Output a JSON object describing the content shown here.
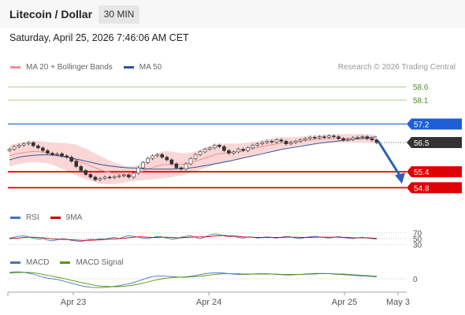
{
  "header": {
    "title": "Litecoin / Dollar",
    "timeframe_button": "30 MIN",
    "datetime": "Saturday, April 25, 2026 7:46:06 AM CET",
    "copyright": "Research © 2026 Trading Central"
  },
  "legends": {
    "price": [
      {
        "label": "MA 20 + Bollinger Bands",
        "color": "#f0908c"
      },
      {
        "label": "MA 50",
        "color": "#2f5597"
      }
    ],
    "rsi": [
      {
        "label": "RSI",
        "color": "#4472c4"
      },
      {
        "label": "9MA",
        "color": "#cc0000"
      }
    ],
    "macd": [
      {
        "label": "MACD",
        "color": "#4472c4"
      },
      {
        "label": "MACD Signal",
        "color": "#4e9a06"
      }
    ]
  },
  "chart_data": {
    "type": "candlestick",
    "ylim": [
      54.1,
      59.2
    ],
    "levels": [
      {
        "value": 58.6,
        "label": "58.6",
        "color": "#8fbc5a",
        "style": "thin"
      },
      {
        "value": 58.1,
        "label": "58.1",
        "color": "#8fbc5a",
        "style": "thin"
      },
      {
        "value": 57.2,
        "label": "57.2",
        "color": "#1f5fd6",
        "style": "resistance"
      },
      {
        "value": 56.5,
        "label": "56.5",
        "color": "#333333",
        "style": "current"
      },
      {
        "value": 55.4,
        "label": "55.4",
        "color": "#e00000",
        "style": "support"
      },
      {
        "value": 54.8,
        "label": "54.8",
        "color": "#e00000",
        "style": "support"
      }
    ],
    "x_ticks": [
      "Apr 23",
      "Apr 24",
      "Apr 25",
      "May 3"
    ],
    "close": [
      56.25,
      56.35,
      56.4,
      56.45,
      56.5,
      56.38,
      56.3,
      56.2,
      56.1,
      56.05,
      56.08,
      56.0,
      55.95,
      55.8,
      55.6,
      55.45,
      55.3,
      55.2,
      55.1,
      55.15,
      55.2,
      55.18,
      55.22,
      55.25,
      55.28,
      55.2,
      55.35,
      55.55,
      55.75,
      55.9,
      56.0,
      56.05,
      55.95,
      55.85,
      55.7,
      55.55,
      55.5,
      55.7,
      55.9,
      56.05,
      56.15,
      56.25,
      56.3,
      56.4,
      56.35,
      56.2,
      56.1,
      56.15,
      56.25,
      56.2,
      56.3,
      56.4,
      56.45,
      56.5,
      56.55,
      56.52,
      56.6,
      56.55,
      56.45,
      56.5,
      56.55,
      56.6,
      56.65,
      56.7,
      56.68,
      56.72,
      56.7,
      56.75,
      56.72,
      56.65,
      56.6,
      56.62,
      56.68,
      56.7,
      56.72,
      56.65,
      56.6,
      56.5
    ],
    "ma20": [
      56.0,
      56.05,
      56.1,
      56.12,
      56.15,
      56.16,
      56.16,
      56.14,
      56.12,
      56.08,
      56.04,
      56.0,
      55.96,
      55.9,
      55.84,
      55.76,
      55.7,
      55.62,
      55.55,
      55.48,
      55.42,
      55.38,
      55.34,
      55.32,
      55.31,
      55.31,
      55.33,
      55.37,
      55.43,
      55.5,
      55.56,
      55.62,
      55.66,
      55.68,
      55.68,
      55.68,
      55.68,
      55.7,
      55.74,
      55.8,
      55.86,
      55.92,
      55.98,
      56.04,
      56.08,
      56.1,
      56.12,
      56.14,
      56.17,
      56.2,
      56.24,
      56.28,
      56.31,
      56.35,
      56.39,
      56.42,
      56.45,
      56.48,
      56.5,
      56.52,
      56.54,
      56.56,
      56.58,
      56.6,
      56.62,
      56.63,
      56.64,
      56.65,
      56.66,
      56.66,
      56.66,
      56.66,
      56.66,
      56.66,
      56.66,
      56.65,
      56.64,
      56.62
    ],
    "bb_band_width": [
      0.4,
      0.4,
      0.4,
      0.4,
      0.4,
      0.4,
      0.4,
      0.4,
      0.4,
      0.42,
      0.45,
      0.48,
      0.52,
      0.55,
      0.58,
      0.58,
      0.58,
      0.56,
      0.54,
      0.52,
      0.48,
      0.44,
      0.4,
      0.36,
      0.32,
      0.28,
      0.28,
      0.3,
      0.34,
      0.4,
      0.45,
      0.48,
      0.5,
      0.5,
      0.48,
      0.45,
      0.42,
      0.4,
      0.38,
      0.38,
      0.38,
      0.38,
      0.38,
      0.38,
      0.38,
      0.36,
      0.34,
      0.32,
      0.3,
      0.28,
      0.26,
      0.25,
      0.24,
      0.24,
      0.24,
      0.24,
      0.24,
      0.22,
      0.2,
      0.18,
      0.17,
      0.16,
      0.16,
      0.16,
      0.16,
      0.16,
      0.16,
      0.16,
      0.16,
      0.16,
      0.16,
      0.16,
      0.16,
      0.16,
      0.16,
      0.16,
      0.16,
      0.16
    ],
    "ma50": [
      55.85,
      55.9,
      55.95,
      55.98,
      56.0,
      56.02,
      56.03,
      56.04,
      56.04,
      56.03,
      56.01,
      55.98,
      55.95,
      55.92,
      55.88,
      55.84,
      55.8,
      55.76,
      55.72,
      55.68,
      55.65,
      55.62,
      55.6,
      55.58,
      55.56,
      55.55,
      55.54,
      55.53,
      55.52,
      55.51,
      55.5,
      55.5,
      55.5,
      55.5,
      55.5,
      55.51,
      55.52,
      55.53,
      55.55,
      55.57,
      55.6,
      55.63,
      55.66,
      55.7,
      55.73,
      55.77,
      55.8,
      55.84,
      55.88,
      55.92,
      55.96,
      56.0,
      56.04,
      56.08,
      56.12,
      56.16,
      56.2,
      56.24,
      56.27,
      56.3,
      56.33,
      56.36,
      56.39,
      56.42,
      56.45,
      56.48,
      56.5,
      56.52,
      56.54,
      56.56,
      56.58,
      56.6,
      56.62,
      56.64,
      56.66,
      56.68,
      56.7,
      56.72
    ],
    "forecast": {
      "from": 56.55,
      "to": 54.95
    },
    "rsi": {
      "ticks": [
        70,
        50,
        30
      ],
      "rsi": [
        52,
        55,
        58,
        60,
        56,
        52,
        48,
        50,
        45,
        42,
        46,
        50,
        48,
        44,
        42,
        40,
        44,
        48,
        46,
        50,
        48,
        52,
        54,
        50,
        56,
        60,
        58,
        55,
        52,
        50,
        54,
        58,
        56,
        52,
        48,
        50,
        55,
        58,
        60,
        54,
        50,
        56,
        62,
        66,
        64,
        60,
        56,
        58,
        54,
        52,
        56,
        55,
        52,
        54,
        56,
        54,
        52,
        55,
        58,
        56,
        52,
        50,
        54,
        56,
        58,
        56,
        54,
        52,
        55,
        57,
        54,
        52,
        50,
        53,
        55,
        52,
        50,
        48
      ],
      "ma9": [
        50,
        51,
        52,
        54,
        55,
        55,
        54,
        53,
        51,
        49,
        48,
        47,
        47,
        46,
        45,
        44,
        44,
        44,
        45,
        46,
        47,
        48,
        49,
        50,
        51,
        53,
        55,
        56,
        56,
        55,
        54,
        54,
        55,
        55,
        54,
        53,
        53,
        54,
        55,
        56,
        56,
        56,
        57,
        59,
        60,
        61,
        60,
        59,
        58,
        56,
        55,
        55,
        54,
        54,
        54,
        54,
        54,
        54,
        55,
        55,
        55,
        54,
        54,
        54,
        55,
        55,
        55,
        55,
        55,
        55,
        54,
        54,
        53,
        53,
        53,
        53,
        52,
        51
      ]
    },
    "macd": {
      "ticks": [
        0
      ],
      "macd": [
        0.2,
        0.22,
        0.22,
        0.2,
        0.18,
        0.15,
        0.1,
        0.05,
        0.02,
        0.0,
        -0.02,
        -0.06,
        -0.1,
        -0.14,
        -0.18,
        -0.22,
        -0.25,
        -0.27,
        -0.28,
        -0.28,
        -0.27,
        -0.26,
        -0.24,
        -0.22,
        -0.19,
        -0.16,
        -0.12,
        -0.07,
        -0.02,
        0.03,
        0.07,
        0.09,
        0.09,
        0.08,
        0.07,
        0.06,
        0.05,
        0.06,
        0.08,
        0.1,
        0.13,
        0.16,
        0.18,
        0.19,
        0.19,
        0.18,
        0.16,
        0.15,
        0.14,
        0.14,
        0.14,
        0.15,
        0.16,
        0.16,
        0.16,
        0.15,
        0.14,
        0.13,
        0.12,
        0.12,
        0.13,
        0.14,
        0.15,
        0.16,
        0.17,
        0.17,
        0.17,
        0.16,
        0.15,
        0.14,
        0.13,
        0.12,
        0.11,
        0.1,
        0.09,
        0.08,
        0.07,
        0.06
      ],
      "signal": [
        0.18,
        0.19,
        0.2,
        0.2,
        0.2,
        0.19,
        0.17,
        0.14,
        0.11,
        0.08,
        0.05,
        0.02,
        -0.01,
        -0.05,
        -0.08,
        -0.12,
        -0.15,
        -0.18,
        -0.21,
        -0.23,
        -0.24,
        -0.25,
        -0.25,
        -0.25,
        -0.24,
        -0.22,
        -0.2,
        -0.17,
        -0.14,
        -0.1,
        -0.06,
        -0.03,
        0.0,
        0.02,
        0.04,
        0.05,
        0.05,
        0.05,
        0.06,
        0.07,
        0.08,
        0.1,
        0.12,
        0.14,
        0.15,
        0.16,
        0.16,
        0.16,
        0.16,
        0.15,
        0.15,
        0.15,
        0.15,
        0.15,
        0.15,
        0.15,
        0.15,
        0.14,
        0.14,
        0.14,
        0.14,
        0.14,
        0.14,
        0.15,
        0.15,
        0.16,
        0.16,
        0.16,
        0.16,
        0.15,
        0.15,
        0.14,
        0.13,
        0.12,
        0.11,
        0.1,
        0.09,
        0.08
      ]
    }
  }
}
